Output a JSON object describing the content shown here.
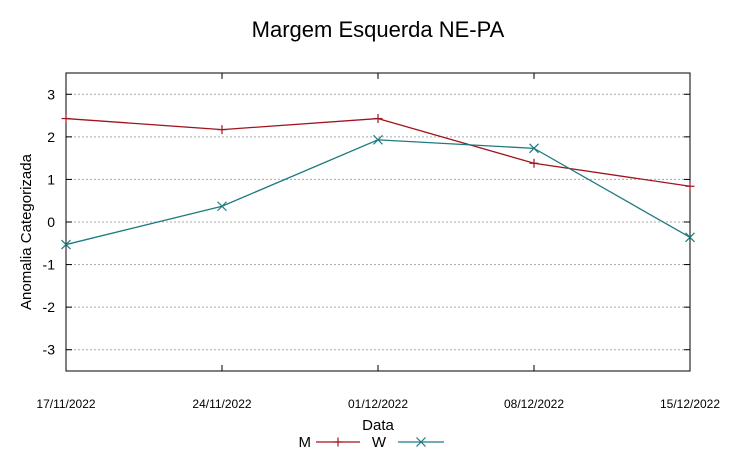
{
  "chart_data": {
    "type": "line",
    "title": "Margem Esquerda NE-PA",
    "xlabel": "Data",
    "ylabel": "Anomalia Categorizada",
    "categories": [
      "17/11/2022",
      "24/11/2022",
      "01/12/2022",
      "08/12/2022",
      "15/12/2022"
    ],
    "yticks": [
      "-3",
      "-2",
      "-1",
      "0",
      "1",
      "2",
      "3"
    ],
    "ylim": [
      -3.5,
      3.5
    ],
    "grid": true,
    "legend_position": "bottom",
    "series": [
      {
        "name": "M",
        "color": "#a0141e",
        "marker": "plus",
        "values": [
          2.43,
          2.17,
          2.43,
          1.38,
          0.84
        ]
      },
      {
        "name": "W",
        "color": "#1f7a80",
        "marker": "x",
        "values": [
          -0.53,
          0.37,
          1.93,
          1.73,
          -0.36
        ]
      }
    ]
  }
}
